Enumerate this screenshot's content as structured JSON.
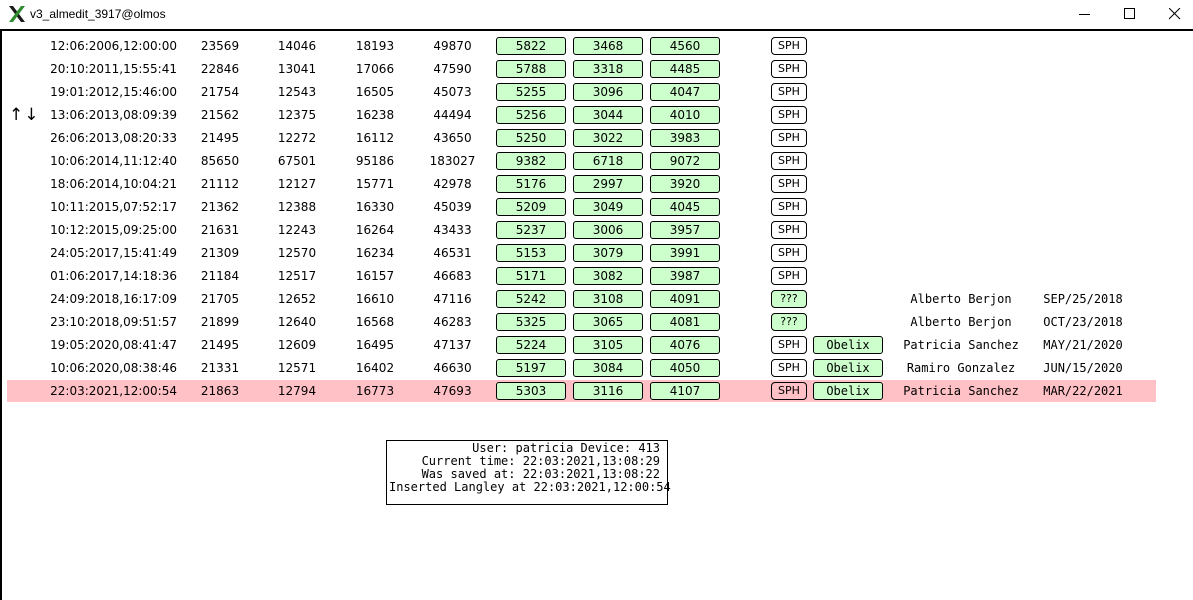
{
  "window": {
    "title": "v3_almedit_3917@olmos"
  },
  "sort_arrows": "↑↓",
  "rows": [
    {
      "timestamp": "12:06:2006,12:00:00",
      "v1": "23569",
      "v2": "14046",
      "v3": "18193",
      "v4": "49870",
      "g1": "5822",
      "g2": "3468",
      "g3": "4560",
      "tag": "SPH",
      "obelix": "",
      "person": "",
      "date": ""
    },
    {
      "timestamp": "20:10:2011,15:55:41",
      "v1": "22846",
      "v2": "13041",
      "v3": "17066",
      "v4": "47590",
      "g1": "5788",
      "g2": "3318",
      "g3": "4485",
      "tag": "SPH",
      "obelix": "",
      "person": "",
      "date": ""
    },
    {
      "timestamp": "19:01:2012,15:46:00",
      "v1": "21754",
      "v2": "12543",
      "v3": "16505",
      "v4": "45073",
      "g1": "5255",
      "g2": "3096",
      "g3": "4047",
      "tag": "SPH",
      "obelix": "",
      "person": "",
      "date": ""
    },
    {
      "timestamp": "13:06:2013,08:09:39",
      "v1": "21562",
      "v2": "12375",
      "v3": "16238",
      "v4": "44494",
      "g1": "5256",
      "g2": "3044",
      "g3": "4010",
      "tag": "SPH",
      "obelix": "",
      "person": "",
      "date": ""
    },
    {
      "timestamp": "26:06:2013,08:20:33",
      "v1": "21495",
      "v2": "12272",
      "v3": "16112",
      "v4": "43650",
      "g1": "5250",
      "g2": "3022",
      "g3": "3983",
      "tag": "SPH",
      "obelix": "",
      "person": "",
      "date": ""
    },
    {
      "timestamp": "10:06:2014,11:12:40",
      "v1": "85650",
      "v2": "67501",
      "v3": "95186",
      "v4": "183027",
      "g1": "9382",
      "g2": "6718",
      "g3": "9072",
      "tag": "SPH",
      "obelix": "",
      "person": "",
      "date": ""
    },
    {
      "timestamp": "18:06:2014,10:04:21",
      "v1": "21112",
      "v2": "12127",
      "v3": "15771",
      "v4": "42978",
      "g1": "5176",
      "g2": "2997",
      "g3": "3920",
      "tag": "SPH",
      "obelix": "",
      "person": "",
      "date": ""
    },
    {
      "timestamp": "10:11:2015,07:52:17",
      "v1": "21362",
      "v2": "12388",
      "v3": "16330",
      "v4": "45039",
      "g1": "5209",
      "g2": "3049",
      "g3": "4045",
      "tag": "SPH",
      "obelix": "",
      "person": "",
      "date": ""
    },
    {
      "timestamp": "10:12:2015,09:25:00",
      "v1": "21631",
      "v2": "12243",
      "v3": "16264",
      "v4": "43433",
      "g1": "5237",
      "g2": "3006",
      "g3": "3957",
      "tag": "SPH",
      "obelix": "",
      "person": "",
      "date": ""
    },
    {
      "timestamp": "24:05:2017,15:41:49",
      "v1": "21309",
      "v2": "12570",
      "v3": "16234",
      "v4": "46531",
      "g1": "5153",
      "g2": "3079",
      "g3": "3991",
      "tag": "SPH",
      "obelix": "",
      "person": "",
      "date": ""
    },
    {
      "timestamp": "01:06:2017,14:18:36",
      "v1": "21184",
      "v2": "12517",
      "v3": "16157",
      "v4": "46683",
      "g1": "5171",
      "g2": "3082",
      "g3": "3987",
      "tag": "SPH",
      "obelix": "",
      "person": "",
      "date": ""
    },
    {
      "timestamp": "24:09:2018,16:17:09",
      "v1": "21705",
      "v2": "12652",
      "v3": "16610",
      "v4": "47116",
      "g1": "5242",
      "g2": "3108",
      "g3": "4091",
      "tag": "???",
      "obelix": "",
      "person": "Alberto Berjon",
      "date": "SEP/25/2018"
    },
    {
      "timestamp": "23:10:2018,09:51:57",
      "v1": "21899",
      "v2": "12640",
      "v3": "16568",
      "v4": "46283",
      "g1": "5325",
      "g2": "3065",
      "g3": "4081",
      "tag": "???",
      "obelix": "",
      "person": "Alberto Berjon",
      "date": "OCT/23/2018"
    },
    {
      "timestamp": "19:05:2020,08:41:47",
      "v1": "21495",
      "v2": "12609",
      "v3": "16495",
      "v4": "47137",
      "g1": "5224",
      "g2": "3105",
      "g3": "4076",
      "tag": "SPH",
      "obelix": "Obelix",
      "person": "Patricia Sanchez",
      "date": "MAY/21/2020"
    },
    {
      "timestamp": "10:06:2020,08:38:46",
      "v1": "21331",
      "v2": "12571",
      "v3": "16402",
      "v4": "46630",
      "g1": "5197",
      "g2": "3084",
      "g3": "4050",
      "tag": "SPH",
      "obelix": "Obelix",
      "person": "Ramiro Gonzalez",
      "date": "JUN/15/2020"
    },
    {
      "timestamp": "22:03:2021,12:00:54",
      "v1": "21863",
      "v2": "12794",
      "v3": "16773",
      "v4": "47693",
      "g1": "5303",
      "g2": "3116",
      "g3": "4107",
      "tag": "SPH",
      "obelix": "Obelix",
      "person": "Patricia Sanchez",
      "date": "MAR/22/2021",
      "highlight": true
    }
  ],
  "info": {
    "line1": "User: patricia Device: 413",
    "line2": "Current time: 22:03:2021,13:08:29",
    "line3": "Was saved at: 22:03:2021,13:08:22",
    "line4": "Inserted Langley at 22:03:2021,12:00:54"
  },
  "colors": {
    "green_box": "#ccffcc",
    "highlight": "#ffc0c6"
  }
}
